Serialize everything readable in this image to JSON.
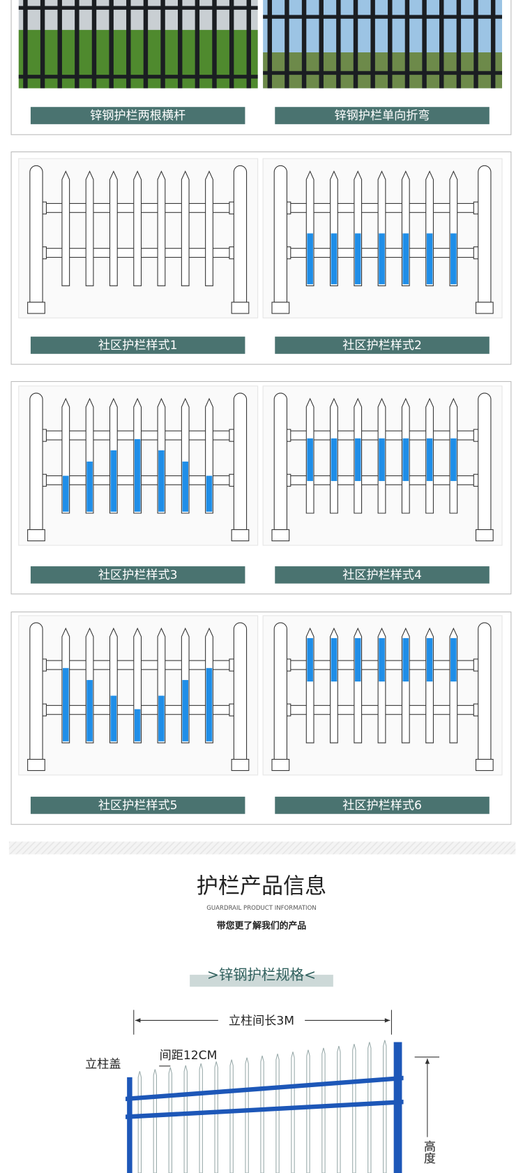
{
  "photos": [
    {
      "caption": "锌钢护栏两根横杆"
    },
    {
      "caption": "锌钢护栏单向折弯"
    }
  ],
  "styles": [
    {
      "caption": "社区护栏样式1"
    },
    {
      "caption": "社区护栏样式2"
    },
    {
      "caption": "社区护栏样式3"
    },
    {
      "caption": "社区护栏样式4"
    },
    {
      "caption": "社区护栏样式5"
    },
    {
      "caption": "社区护栏样式6"
    }
  ],
  "info": {
    "title": "护栏产品信息",
    "subtitle": "GUARDRAIL PRODUCT INFORMATION",
    "tagline": "带您更了解我们的产品"
  },
  "spec": {
    "title": ">锌钢护栏规格<",
    "post_spacing": "立柱间长3M",
    "picket_gap": "间距12CM",
    "post_cap": "立柱盖",
    "height": "高度"
  }
}
